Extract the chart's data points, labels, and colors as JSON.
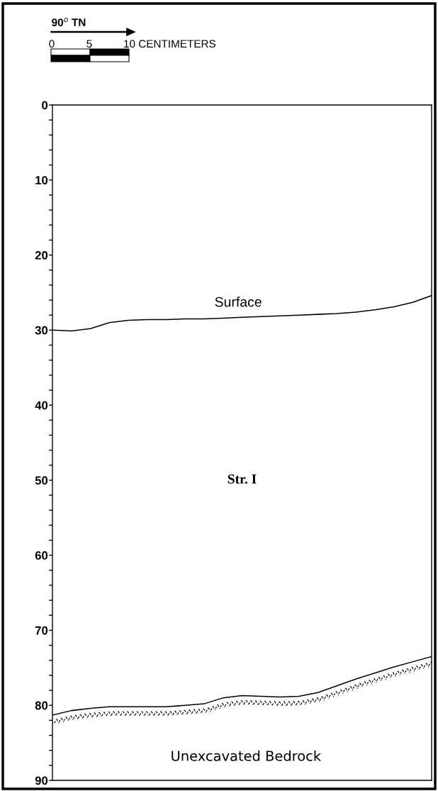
{
  "chart_data": {
    "type": "line",
    "categories": [
      null,
      null,
      null,
      null,
      null,
      null,
      null,
      null,
      null,
      null,
      null,
      null,
      null,
      null,
      null,
      null,
      null,
      null,
      null,
      null,
      null
    ],
    "series": [
      {
        "color": "#000000",
        "values": [
          30.0,
          30.1,
          29.8,
          29.0,
          28.7,
          28.6,
          28.6,
          28.5,
          28.5,
          28.4,
          28.3,
          28.2,
          28.1,
          28.0,
          27.9,
          27.8,
          27.6,
          27.3,
          26.9,
          26.3,
          25.4
        ]
      },
      {
        "color": "#000000",
        "values": [
          81.3,
          80.7,
          80.4,
          80.2,
          80.2,
          80.2,
          80.2,
          80.0,
          79.8,
          79.0,
          78.7,
          78.8,
          78.9,
          78.8,
          78.3,
          77.4,
          76.5,
          75.7,
          74.9,
          74.2,
          73.5
        ]
      }
    ],
    "ylim": [
      90,
      0
    ],
    "yticks": [
      0,
      {
        "value": 2,
        "label": null
      },
      {
        "value": 4,
        "label": null
      },
      {
        "value": 6,
        "label": null
      },
      {
        "value": 8,
        "label": null
      },
      10,
      {
        "value": 12,
        "label": null
      },
      {
        "value": 14,
        "label": null
      },
      {
        "value": 16,
        "label": null
      },
      {
        "value": 18,
        "label": null
      },
      20,
      {
        "value": 22,
        "label": null
      },
      {
        "value": 24,
        "label": null
      },
      {
        "value": 26,
        "label": null
      },
      {
        "value": 28,
        "label": null
      },
      30,
      {
        "value": 32,
        "label": null
      },
      {
        "value": 34,
        "label": null
      },
      {
        "value": 36,
        "label": null
      },
      {
        "value": 38,
        "label": null
      },
      40,
      {
        "value": 42,
        "label": null
      },
      {
        "value": 44,
        "label": null
      },
      {
        "value": 46,
        "label": null
      },
      {
        "value": 48,
        "label": null
      },
      50,
      {
        "value": 52,
        "label": null
      },
      {
        "value": 54,
        "label": null
      },
      {
        "value": 56,
        "label": null
      },
      {
        "value": 58,
        "label": null
      },
      60,
      {
        "value": 62,
        "label": null
      },
      {
        "value": 64,
        "label": null
      },
      {
        "value": 66,
        "label": null
      },
      {
        "value": 68,
        "label": null
      },
      70,
      {
        "value": 72,
        "label": null
      },
      {
        "value": 74,
        "label": null
      },
      {
        "value": 76,
        "label": null
      },
      {
        "value": 78,
        "label": null
      },
      80,
      {
        "value": 82,
        "label": null
      },
      {
        "value": 84,
        "label": null
      },
      {
        "value": 86,
        "label": null
      },
      {
        "value": 88,
        "label": null
      },
      90
    ],
    "tick_labels": "y",
    "grid": false,
    "legend": false,
    "marker": "none",
    "line_style": "solid",
    "annotations": [
      "90$^{o}$ TN",
      "0",
      "5",
      "10 CENTIMETERS",
      "Surface",
      "Str. I",
      "Unexcavated Bedrock"
    ]
  }
}
